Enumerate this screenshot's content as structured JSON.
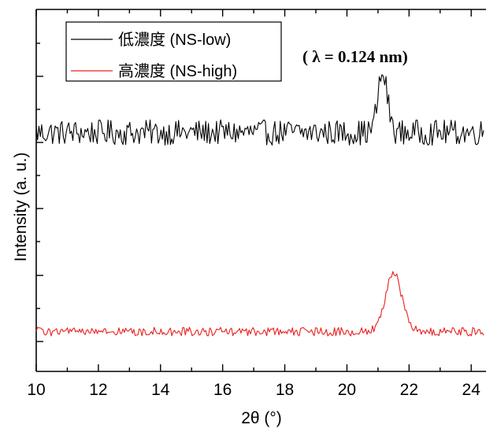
{
  "chart_data": {
    "type": "line",
    "title": "",
    "xlabel": "2θ (°)",
    "ylabel": "Intensity (a. u.)",
    "xlim": [
      10,
      24.4
    ],
    "xticks": [
      10,
      12,
      14,
      16,
      18,
      20,
      22,
      24
    ],
    "xtick_labels": [
      "10",
      "12",
      "14",
      "16",
      "18",
      "20",
      "22",
      "24"
    ],
    "yticks_labeled": false,
    "grid": false,
    "legend_position": "top-left",
    "annotation": "( λ = 0.124 nm)",
    "series": [
      {
        "name": "低濃度 (NS-low)",
        "color": "#000000",
        "base_level": 0.66,
        "noise_amplitude": 0.035,
        "peaks": [
          {
            "center": 21.15,
            "height": 0.16,
            "width": 0.22
          }
        ]
      },
      {
        "name": "高濃度 (NS-high)",
        "color": "#e8201f",
        "base_level": 0.11,
        "noise_amplitude": 0.012,
        "peaks": [
          {
            "center": 21.5,
            "height": 0.16,
            "width": 0.38
          }
        ]
      }
    ]
  }
}
